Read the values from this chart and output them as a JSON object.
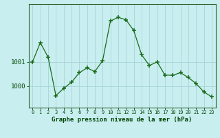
{
  "x": [
    0,
    1,
    2,
    3,
    4,
    5,
    6,
    7,
    8,
    9,
    10,
    11,
    12,
    13,
    14,
    15,
    16,
    17,
    18,
    19,
    20,
    21,
    22,
    23
  ],
  "y": [
    1001.0,
    1001.8,
    1001.2,
    999.6,
    999.9,
    1000.15,
    1000.55,
    1000.75,
    1000.6,
    1001.05,
    1002.7,
    1002.85,
    1002.75,
    1002.3,
    1001.3,
    1000.85,
    1001.0,
    1000.45,
    1000.45,
    1000.55,
    1000.35,
    1000.1,
    999.75,
    999.55
  ],
  "line_color": "#1a6b1a",
  "marker_color": "#1a6b1a",
  "bg_color": "#c8eef0",
  "grid_color": "#a8d4d8",
  "axis_color": "#336633",
  "label_color": "#004400",
  "xlabel": "Graphe pression niveau de la mer (hPa)",
  "yticks": [
    1000,
    1001
  ],
  "ytick_labels": [
    "1000",
    "1001"
  ],
  "ylim": [
    999.1,
    1003.4
  ],
  "xlim": [
    -0.5,
    23.5
  ],
  "xtick_labels": [
    "0",
    "1",
    "2",
    "3",
    "4",
    "5",
    "6",
    "7",
    "8",
    "9",
    "10",
    "11",
    "12",
    "13",
    "14",
    "15",
    "16",
    "17",
    "18",
    "19",
    "20",
    "21",
    "22",
    "23"
  ]
}
